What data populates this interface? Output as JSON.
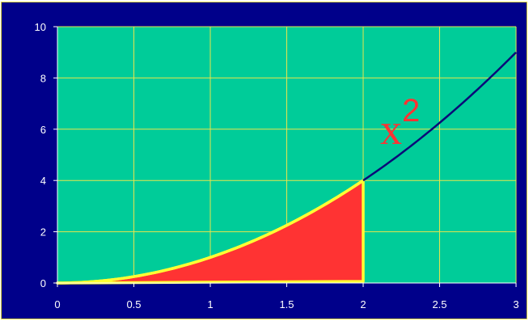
{
  "chart_data": {
    "type": "line",
    "title": "",
    "xlabel": "",
    "ylabel": "",
    "xlim": [
      0,
      3
    ],
    "ylim": [
      0,
      10
    ],
    "x_ticks": [
      "0",
      "0.5",
      "1",
      "1.5",
      "2",
      "2.5",
      "3"
    ],
    "y_ticks": [
      "0",
      "2",
      "4",
      "6",
      "8",
      "10"
    ],
    "grid": true,
    "series": [
      {
        "function": "x^2",
        "x": [
          0,
          0.25,
          0.5,
          0.75,
          1,
          1.25,
          1.5,
          1.75,
          2,
          2.25,
          2.5,
          2.75,
          3
        ],
        "y": [
          0,
          0.0625,
          0.25,
          0.5625,
          1,
          1.5625,
          2.25,
          3.0625,
          4,
          5.0625,
          6.25,
          7.5625,
          9
        ],
        "color": "#0a0a78"
      }
    ],
    "shaded_region": {
      "x_from": 0,
      "x_to": 2,
      "fill": "#ff3333",
      "outline": "#ffff33"
    },
    "annotations": [
      {
        "base": "x",
        "superscript": "2",
        "color": "#ff3333"
      }
    ],
    "colors": {
      "plot_background": "#00cc99",
      "outer_background": "#00008a",
      "grid": "#e6e64d",
      "axis": "#ffffff"
    }
  }
}
